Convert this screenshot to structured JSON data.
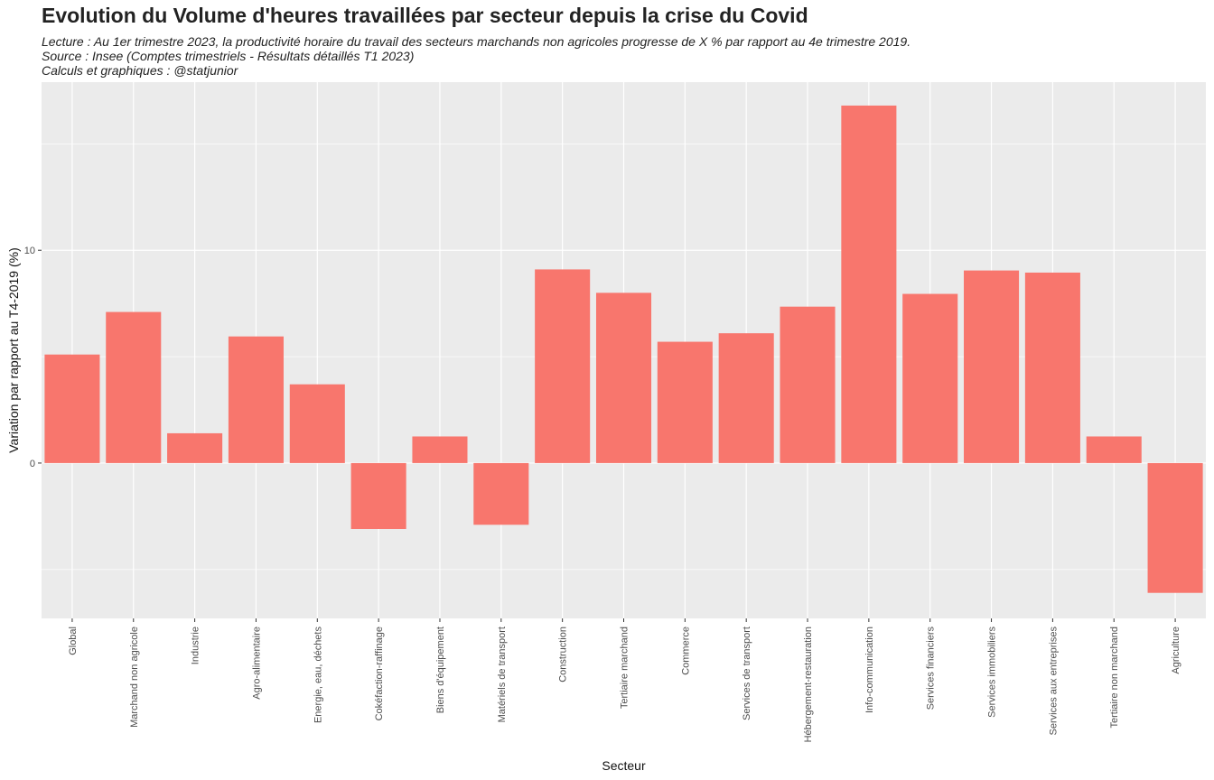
{
  "chart_data": {
    "type": "bar",
    "title": "Evolution du Volume d'heures travaillées par secteur depuis la crise du Covid",
    "subtitle_lines": [
      "Lecture : Au 1er trimestre 2023, la productivité horaire du travail des secteurs marchands non agricoles progresse de X % par rapport au 4e trimestre 2019.",
      "Source : Insee (Comptes trimestriels - Résultats détaillés T1 2023)",
      "Calculs et graphiques : @statjunior"
    ],
    "xlabel": "Secteur",
    "ylabel": "Variation par rapport au T4-2019 (%)",
    "ylim": [
      -7.3,
      17.9
    ],
    "yticks": [
      0,
      10
    ],
    "grid": true,
    "bar_color": "#F8766D",
    "panel_color": "#EBEBEB",
    "categories": [
      "Global",
      "Marchand non agricole",
      "Industrie",
      "Agro-alimentaire",
      "Energie, eau, déchets",
      "Cokéfaction-raffinage",
      "Biens d'équipement",
      "Matériels de transport",
      "Construction",
      "Tertiaire marchand",
      "Commerce",
      "Services de transport",
      "Hébergement-restauration",
      "Info-communication",
      "Services financiers",
      "Services immobiliers",
      "Services aux entreprises",
      "Tertiaire non marchand",
      "Agriculture"
    ],
    "values": [
      5.1,
      7.1,
      1.4,
      5.95,
      3.7,
      -3.1,
      1.25,
      -2.9,
      9.1,
      8.0,
      5.7,
      6.1,
      7.35,
      16.8,
      7.95,
      9.05,
      8.95,
      1.25,
      -6.1
    ]
  }
}
